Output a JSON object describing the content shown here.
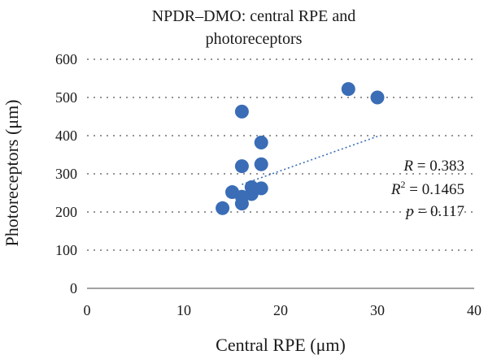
{
  "chart_data": {
    "type": "scatter",
    "title_lines": [
      "NPDR–DMO: central RPE and",
      "photoreceptors"
    ],
    "xlabel": "Central RPE (μm)",
    "ylabel": "Photoreceptors (μm)",
    "xlim": [
      0,
      40
    ],
    "ylim": [
      0,
      600
    ],
    "x_ticks": [
      "0",
      "10",
      "20",
      "30",
      "40"
    ],
    "y_ticks": [
      "0",
      "100",
      "200",
      "300",
      "400",
      "500",
      "600"
    ],
    "grid": "horizontal dotted",
    "point_color": "#3a6db6",
    "trendline_color": "#3a6db6",
    "trendline": {
      "x": [
        16,
        30
      ],
      "y": [
        272,
        398
      ]
    },
    "points": [
      {
        "x": 14,
        "y": 210
      },
      {
        "x": 15,
        "y": 252
      },
      {
        "x": 16,
        "y": 222
      },
      {
        "x": 16,
        "y": 240
      },
      {
        "x": 16,
        "y": 320
      },
      {
        "x": 16,
        "y": 463
      },
      {
        "x": 17,
        "y": 247
      },
      {
        "x": 17,
        "y": 265
      },
      {
        "x": 18,
        "y": 262
      },
      {
        "x": 18,
        "y": 325
      },
      {
        "x": 18,
        "y": 382
      },
      {
        "x": 27,
        "y": 522
      },
      {
        "x": 30,
        "y": 500
      }
    ],
    "annotations": {
      "r_label": "R",
      "r_value": " = 0.383",
      "r2_label": "R",
      "r2_sup": "2",
      "r2_value": " = 0.1465",
      "p_label": "p",
      "p_value": " = 0.117"
    }
  }
}
